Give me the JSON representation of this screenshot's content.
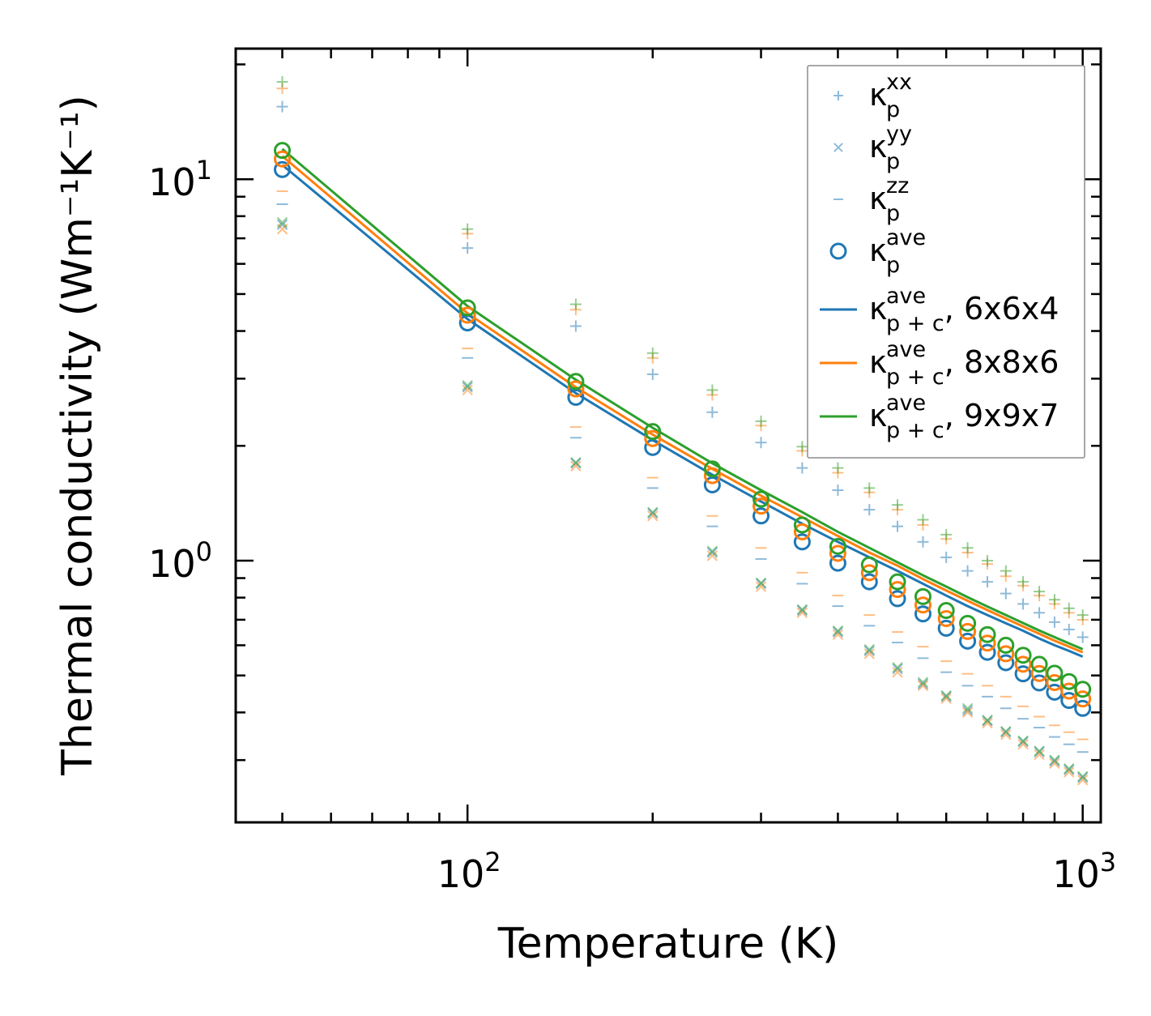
{
  "chart_data": {
    "type": "scatter",
    "xscale": "log",
    "yscale": "log",
    "xlabel": "Temperature (K)",
    "ylabel": "Thermal conductivity (Wm⁻¹K⁻¹)",
    "xlim": [
      42,
      1070
    ],
    "ylim": [
      0.206,
      22.0
    ],
    "xticks": [
      {
        "value": 100,
        "base": "10",
        "exp": "2"
      },
      {
        "value": 1000,
        "base": "10",
        "exp": "3"
      }
    ],
    "yticks": [
      {
        "value": 1,
        "base": "10",
        "exp": "0"
      },
      {
        "value": 10,
        "base": "10",
        "exp": "1"
      }
    ],
    "x": [
      50,
      100,
      150,
      200,
      250,
      300,
      350,
      400,
      450,
      500,
      550,
      600,
      650,
      700,
      750,
      800,
      850,
      900,
      950,
      1000
    ],
    "colors": {
      "blue": "#1f77b4",
      "orange": "#ff7f0e",
      "green": "#2ca02c"
    },
    "legend": {
      "position": "top-right",
      "entries": [
        {
          "symbol": "κ",
          "sub": "p",
          "sup": "xx",
          "suffix": "",
          "marker": "plus"
        },
        {
          "symbol": "κ",
          "sub": "p",
          "sup": "yy",
          "suffix": "",
          "marker": "x"
        },
        {
          "symbol": "κ",
          "sub": "p",
          "sup": "zz",
          "suffix": "",
          "marker": "dash"
        },
        {
          "symbol": "κ",
          "sub": "p",
          "sup": "ave",
          "suffix": "",
          "marker": "circle"
        },
        {
          "symbol": "κ",
          "sub": "p + c",
          "sup": "ave",
          "suffix": ", 6x6x4",
          "marker": "line-blue"
        },
        {
          "symbol": "κ",
          "sub": "p + c",
          "sup": "ave",
          "suffix": ", 8x8x6",
          "marker": "line-orange"
        },
        {
          "symbol": "κ",
          "sub": "p + c",
          "sup": "ave",
          "suffix": ", 9x9x7",
          "marker": "line-green"
        }
      ]
    },
    "series": [
      {
        "name": "kappa_p_xx 6x6x4",
        "marker": "plus",
        "color": "blue",
        "values": [
          15.5,
          6.6,
          4.12,
          3.08,
          2.45,
          2.04,
          1.75,
          1.53,
          1.36,
          1.23,
          1.12,
          1.02,
          0.94,
          0.88,
          0.82,
          0.77,
          0.73,
          0.69,
          0.66,
          0.63
        ]
      },
      {
        "name": "kappa_p_xx 8x8x6",
        "marker": "plus",
        "color": "orange",
        "values": [
          17.3,
          7.2,
          4.55,
          3.4,
          2.72,
          2.26,
          1.94,
          1.7,
          1.51,
          1.36,
          1.24,
          1.14,
          1.05,
          0.98,
          0.91,
          0.86,
          0.81,
          0.77,
          0.73,
          0.7
        ]
      },
      {
        "name": "kappa_p_xx 9x9x7",
        "marker": "plus",
        "color": "green",
        "values": [
          18.0,
          7.4,
          4.7,
          3.5,
          2.8,
          2.32,
          1.99,
          1.75,
          1.55,
          1.4,
          1.28,
          1.17,
          1.08,
          1.0,
          0.94,
          0.88,
          0.83,
          0.79,
          0.75,
          0.72
        ]
      },
      {
        "name": "kappa_p_yy 6x6x4",
        "marker": "x",
        "color": "blue",
        "values": [
          7.6,
          2.85,
          1.8,
          1.33,
          1.05,
          0.87,
          0.74,
          0.65,
          0.58,
          0.52,
          0.475,
          0.44,
          0.405,
          0.38,
          0.355,
          0.335,
          0.315,
          0.298,
          0.283,
          0.27
        ]
      },
      {
        "name": "kappa_p_yy 8x8x6",
        "marker": "x",
        "color": "orange",
        "values": [
          7.4,
          2.8,
          1.77,
          1.31,
          1.03,
          0.855,
          0.73,
          0.64,
          0.57,
          0.51,
          0.47,
          0.435,
          0.4,
          0.375,
          0.35,
          0.33,
          0.31,
          0.294,
          0.279,
          0.266
        ]
      },
      {
        "name": "kappa_p_yy 9x9x7",
        "marker": "x",
        "color": "green",
        "values": [
          7.7,
          2.88,
          1.81,
          1.34,
          1.06,
          0.875,
          0.745,
          0.655,
          0.585,
          0.525,
          0.48,
          0.443,
          0.41,
          0.382,
          0.357,
          0.337,
          0.317,
          0.3,
          0.285,
          0.272
        ]
      },
      {
        "name": "kappa_p_zz 6x6x4",
        "marker": "dash",
        "color": "blue",
        "values": [
          8.6,
          3.4,
          2.1,
          1.55,
          1.23,
          1.01,
          0.87,
          0.76,
          0.675,
          0.61,
          0.555,
          0.51,
          0.47,
          0.44,
          0.41,
          0.385,
          0.365,
          0.345,
          0.33,
          0.315
        ]
      },
      {
        "name": "kappa_p_zz 8x8x6",
        "marker": "dash",
        "color": "orange",
        "values": [
          9.3,
          3.6,
          2.24,
          1.65,
          1.31,
          1.08,
          0.93,
          0.81,
          0.72,
          0.65,
          0.595,
          0.545,
          0.505,
          0.47,
          0.44,
          0.415,
          0.39,
          0.37,
          0.355,
          0.34
        ]
      },
      {
        "name": "kappa_p_ave 6x6x4",
        "marker": "circle",
        "color": "blue",
        "values": [
          10.6,
          4.2,
          2.68,
          1.98,
          1.58,
          1.31,
          1.12,
          0.985,
          0.88,
          0.795,
          0.725,
          0.665,
          0.615,
          0.575,
          0.54,
          0.505,
          0.478,
          0.452,
          0.43,
          0.41
        ]
      },
      {
        "name": "kappa_p_ave 8x8x6",
        "marker": "circle",
        "color": "orange",
        "values": [
          11.3,
          4.4,
          2.82,
          2.09,
          1.67,
          1.39,
          1.19,
          1.045,
          0.93,
          0.84,
          0.765,
          0.705,
          0.652,
          0.608,
          0.57,
          0.535,
          0.506,
          0.479,
          0.455,
          0.434
        ]
      },
      {
        "name": "kappa_p_ave 9x9x7",
        "marker": "circle",
        "color": "green",
        "values": [
          11.9,
          4.6,
          2.95,
          2.18,
          1.74,
          1.45,
          1.24,
          1.09,
          0.975,
          0.88,
          0.805,
          0.74,
          0.685,
          0.64,
          0.6,
          0.565,
          0.535,
          0.507,
          0.482,
          0.46
        ]
      },
      {
        "name": "kappa_p+c_ave 6x6x4",
        "marker": "line",
        "color": "blue",
        "values": [
          10.9,
          4.3,
          2.75,
          2.07,
          1.68,
          1.43,
          1.25,
          1.12,
          1.02,
          0.94,
          0.87,
          0.81,
          0.76,
          0.72,
          0.685,
          0.655,
          0.625,
          0.6,
          0.58,
          0.56
        ]
      },
      {
        "name": "kappa_p+c_ave 8x8x6",
        "marker": "line",
        "color": "orange",
        "values": [
          11.5,
          4.45,
          2.85,
          2.14,
          1.74,
          1.48,
          1.3,
          1.16,
          1.05,
          0.97,
          0.895,
          0.835,
          0.785,
          0.742,
          0.705,
          0.672,
          0.643,
          0.617,
          0.595,
          0.575
        ]
      },
      {
        "name": "kappa_p+c_ave 9x9x7",
        "marker": "line",
        "color": "green",
        "values": [
          12.0,
          4.65,
          2.98,
          2.23,
          1.8,
          1.53,
          1.34,
          1.19,
          1.08,
          0.99,
          0.915,
          0.855,
          0.802,
          0.758,
          0.72,
          0.686,
          0.656,
          0.63,
          0.607,
          0.586
        ]
      }
    ]
  }
}
